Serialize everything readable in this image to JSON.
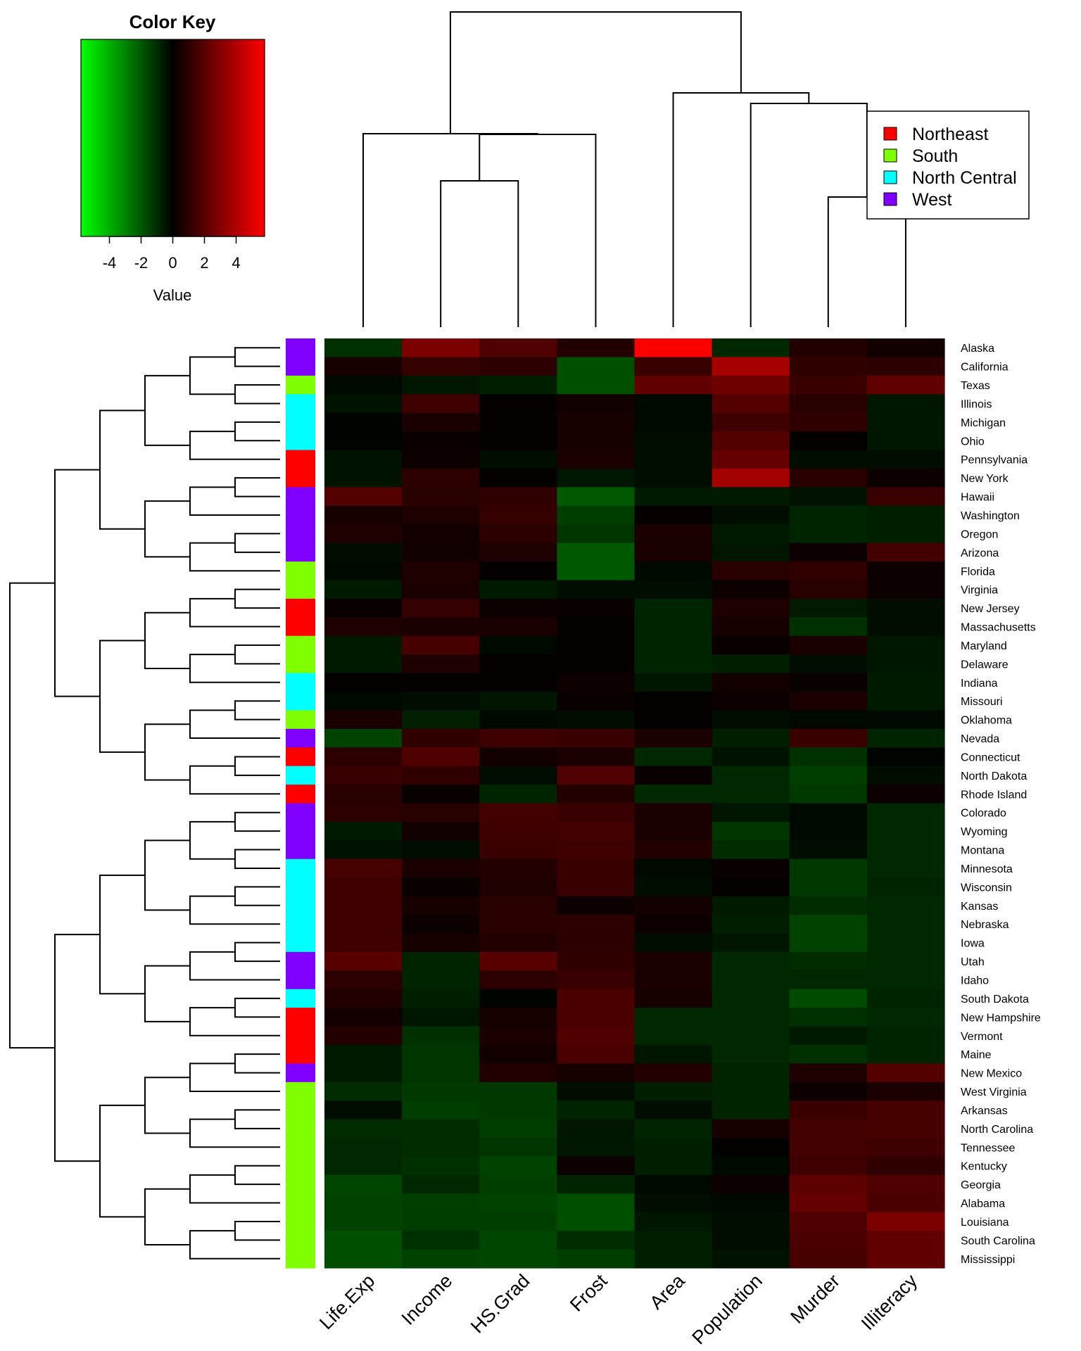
{
  "chart_data": {
    "type": "heatmap",
    "title": "",
    "columns": [
      "Life.Exp",
      "Income",
      "HS.Grad",
      "Frost",
      "Area",
      "Population",
      "Murder",
      "Illiteracy"
    ],
    "rows": [
      "Alaska",
      "California",
      "Texas",
      "Illinois",
      "Michigan",
      "Ohio",
      "Pennsylvania",
      "New York",
      "Hawaii",
      "Washington",
      "Oregon",
      "Arizona",
      "Florida",
      "Virginia",
      "New Jersey",
      "Massachusetts",
      "Maryland",
      "Delaware",
      "Indiana",
      "Missouri",
      "Oklahoma",
      "Nevada",
      "Connecticut",
      "North Dakota",
      "Rhode Island",
      "Colorado",
      "Wyoming",
      "Montana",
      "Minnesota",
      "Wisconsin",
      "Kansas",
      "Nebraska",
      "Iowa",
      "Utah",
      "Idaho",
      "South Dakota",
      "New Hampshire",
      "Vermont",
      "Maine",
      "New Mexico",
      "West Virginia",
      "Arkansas",
      "North Carolina",
      "Tennessee",
      "Kentucky",
      "Georgia",
      "Alabama",
      "Louisiana",
      "South Carolina",
      "Mississippi"
    ],
    "row_groups": [
      "West",
      "West",
      "South",
      "North Central",
      "North Central",
      "North Central",
      "Northeast",
      "Northeast",
      "West",
      "West",
      "West",
      "West",
      "South",
      "South",
      "Northeast",
      "Northeast",
      "South",
      "South",
      "North Central",
      "North Central",
      "South",
      "West",
      "Northeast",
      "North Central",
      "Northeast",
      "West",
      "West",
      "West",
      "North Central",
      "North Central",
      "North Central",
      "North Central",
      "North Central",
      "West",
      "West",
      "North Central",
      "Northeast",
      "Northeast",
      "Northeast",
      "West",
      "South",
      "South",
      "South",
      "South",
      "South",
      "South",
      "South",
      "South",
      "South",
      "South"
    ],
    "values": [
      [
        -1.1,
        2.8,
        1.8,
        0.8,
        5.8,
        -0.9,
        0.8,
        0.4
      ],
      [
        0.5,
        1.2,
        1.0,
        -1.8,
        1.3,
        3.8,
        1.1,
        1.0
      ],
      [
        -0.2,
        -0.5,
        -0.7,
        -1.8,
        2.2,
        2.5,
        1.3,
        2.2
      ],
      [
        -0.4,
        1.4,
        0.1,
        0.4,
        -0.2,
        1.9,
        0.9,
        -0.5
      ],
      [
        -0.1,
        0.6,
        0.1,
        0.5,
        -0.2,
        1.4,
        1.1,
        -0.5
      ],
      [
        -0.1,
        0.2,
        0.1,
        0.5,
        -0.3,
        1.9,
        0.1,
        -0.5
      ],
      [
        -0.4,
        0.3,
        -0.3,
        0.6,
        -0.3,
        2.3,
        -0.3,
        -0.3
      ],
      [
        -0.4,
        1.0,
        0.1,
        -0.5,
        -0.3,
        3.7,
        0.9,
        0.3
      ],
      [
        1.9,
        0.9,
        1.1,
        -2.0,
        -0.6,
        -0.6,
        -0.4,
        1.3
      ],
      [
        0.5,
        0.7,
        1.2,
        -1.4,
        0.1,
        -0.3,
        -0.8,
        -0.7
      ],
      [
        0.7,
        0.4,
        1.0,
        -1.2,
        0.6,
        -0.6,
        -0.8,
        -0.7
      ],
      [
        -0.3,
        0.4,
        0.7,
        -2.0,
        0.6,
        -0.5,
        0.3,
        1.5
      ],
      [
        -0.2,
        0.7,
        0.1,
        -2.0,
        -0.2,
        0.9,
        1.1,
        0.3
      ],
      [
        -0.6,
        0.6,
        -0.6,
        -0.3,
        -0.3,
        0.3,
        0.9,
        0.3
      ],
      [
        0.2,
        1.2,
        0.3,
        0.2,
        -0.8,
        0.7,
        -0.6,
        -0.3
      ],
      [
        0.7,
        0.6,
        0.6,
        0.1,
        -0.8,
        0.5,
        -1.1,
        -0.3
      ],
      [
        -0.6,
        1.6,
        -0.2,
        0.1,
        -0.8,
        0.2,
        0.6,
        -0.5
      ],
      [
        -0.6,
        0.7,
        0.1,
        0.1,
        -0.8,
        -0.7,
        -0.3,
        -0.5
      ],
      [
        0.1,
        0.1,
        0.1,
        0.3,
        -0.5,
        0.4,
        0.2,
        -0.6
      ],
      [
        -0.2,
        -0.3,
        -0.5,
        0.2,
        0.1,
        0.3,
        0.6,
        -0.6
      ],
      [
        0.6,
        -0.7,
        -0.2,
        -0.3,
        0.1,
        -0.3,
        -0.2,
        -0.2
      ],
      [
        -1.5,
        1.1,
        1.4,
        1.3,
        0.6,
        -0.7,
        1.3,
        -0.8
      ],
      [
        1.0,
        1.8,
        0.4,
        0.6,
        -0.9,
        -0.4,
        -1.1,
        -0.1
      ],
      [
        1.3,
        1.1,
        -0.3,
        1.8,
        0.2,
        -0.9,
        -1.4,
        -0.3
      ],
      [
        0.9,
        0.2,
        -0.8,
        0.8,
        -0.9,
        -0.9,
        -1.3,
        0.3
      ],
      [
        1.0,
        0.9,
        1.5,
        1.3,
        0.6,
        -0.5,
        -0.2,
        -0.9
      ],
      [
        -0.6,
        0.4,
        1.4,
        1.5,
        0.6,
        -1.2,
        -0.2,
        -0.9
      ],
      [
        -0.4,
        -0.3,
        1.3,
        1.4,
        0.8,
        -1.0,
        -0.3,
        -0.9
      ],
      [
        1.6,
        0.6,
        0.8,
        1.3,
        -0.2,
        0.2,
        -1.3,
        -0.9
      ],
      [
        1.4,
        0.2,
        0.7,
        1.3,
        -0.3,
        0.1,
        -1.3,
        -0.8
      ],
      [
        1.4,
        0.5,
        0.9,
        0.3,
        0.4,
        -0.6,
        -1.0,
        -0.9
      ],
      [
        1.4,
        0.3,
        0.9,
        1.0,
        0.3,
        -0.7,
        -1.5,
        -0.9
      ],
      [
        1.4,
        0.5,
        0.8,
        1.0,
        -0.3,
        -0.5,
        -1.5,
        -0.9
      ],
      [
        2.0,
        -0.8,
        2.0,
        1.1,
        0.6,
        -0.9,
        -1.0,
        -0.9
      ],
      [
        1.0,
        -0.8,
        1.0,
        1.3,
        0.6,
        -0.9,
        -0.9,
        -0.9
      ],
      [
        0.8,
        -0.7,
        -0.1,
        1.7,
        0.5,
        -0.9,
        -1.7,
        -0.8
      ],
      [
        0.4,
        -0.5,
        0.5,
        1.7,
        -0.9,
        -0.9,
        -1.1,
        -0.9
      ],
      [
        0.8,
        -1.1,
        0.6,
        1.8,
        -0.9,
        -0.9,
        -0.6,
        -0.8
      ],
      [
        -0.6,
        -1.2,
        0.4,
        1.7,
        -0.5,
        -0.9,
        -1.1,
        -0.8
      ],
      [
        -0.6,
        -1.2,
        0.8,
        0.5,
        0.8,
        -0.8,
        0.7,
        1.9
      ],
      [
        -1.0,
        -1.3,
        -1.3,
        -0.3,
        -0.7,
        -0.8,
        0.3,
        0.6
      ],
      [
        -0.3,
        -1.4,
        -1.3,
        -0.8,
        -0.3,
        -0.8,
        1.3,
        1.6
      ],
      [
        -1.0,
        -1.0,
        -1.4,
        -0.5,
        -0.8,
        0.5,
        1.5,
        1.6
      ],
      [
        -0.9,
        -1.0,
        -1.2,
        -0.5,
        -0.7,
        0.1,
        1.5,
        1.4
      ],
      [
        -0.9,
        -1.1,
        -1.5,
        0.3,
        -0.7,
        -0.2,
        1.4,
        1.1
      ],
      [
        -1.6,
        -0.9,
        -1.4,
        -0.8,
        -0.2,
        0.3,
        2.1,
        1.8
      ],
      [
        -1.5,
        -1.4,
        -1.5,
        -1.8,
        -0.3,
        -0.2,
        2.3,
        1.7
      ],
      [
        -1.5,
        -1.4,
        -1.4,
        -1.8,
        -0.5,
        -0.3,
        1.8,
        2.8
      ],
      [
        -1.8,
        -1.1,
        -1.6,
        -1.0,
        -0.7,
        -0.3,
        1.7,
        2.2
      ],
      [
        -1.8,
        -1.5,
        -1.6,
        -1.4,
        -0.7,
        -0.4,
        1.6,
        2.2
      ]
    ],
    "color_key": {
      "title": "Color Key",
      "xlabel": "Value",
      "range": [
        -5.8,
        5.8
      ],
      "ticks": [
        -4,
        -2,
        0,
        2,
        4
      ],
      "low_color": "#00ff00",
      "mid_color": "#000000",
      "high_color": "#ff0000"
    },
    "legend": {
      "placement": "top-right",
      "entries": [
        {
          "label": "Northeast",
          "color": "#ff0000"
        },
        {
          "label": "South",
          "color": "#80ff00"
        },
        {
          "label": "North Central",
          "color": "#00ffff"
        },
        {
          "label": "West",
          "color": "#8000ff"
        }
      ]
    }
  }
}
